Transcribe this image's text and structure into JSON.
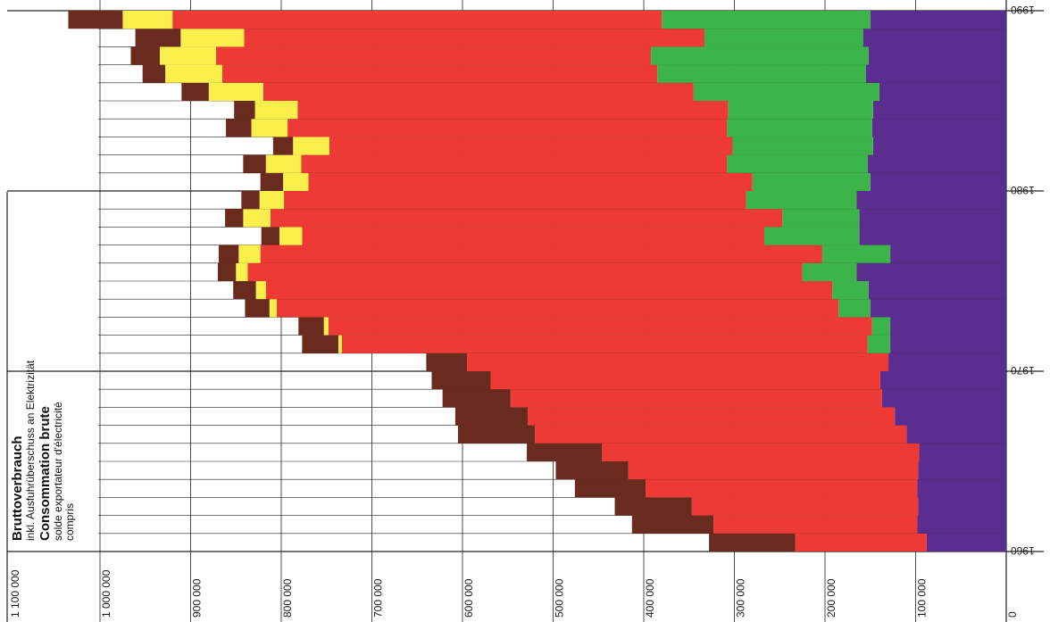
{
  "chart_data": {
    "type": "bar",
    "orientation": "horizontal, stacked, figure rotated 180 degrees (values increase to the left)",
    "titles": [
      {
        "text": "Bruttoverbrauch",
        "style": "bold"
      },
      {
        "text": "inkl. Ausfuhrüberschuss an Elektrizität",
        "style": "normal"
      },
      {
        "text": "Consommation brute",
        "style": "bold"
      },
      {
        "text": "solde exportateur d'électricité",
        "style": "normal"
      },
      {
        "text": "compris",
        "style": "normal"
      }
    ],
    "x_ticks": [
      "0",
      "100 000",
      "200 000",
      "300 000",
      "400 000",
      "500 000",
      "600 000",
      "700 000",
      "800 000",
      "900 000",
      "1 000 000",
      "1 100 000"
    ],
    "xlim": [
      0,
      1100000
    ],
    "year_labels": [
      "1960",
      "1970",
      "1980",
      "1990"
    ],
    "years": [
      1960,
      1961,
      1962,
      1963,
      1964,
      1965,
      1966,
      1967,
      1968,
      1969,
      1970,
      1971,
      1972,
      1973,
      1974,
      1975,
      1976,
      1977,
      1978,
      1979,
      1980,
      1981,
      1982,
      1983,
      1984,
      1985,
      1986,
      1987,
      1988,
      1989,
      1990
    ],
    "colors": {
      "purple": "#5b2d90",
      "green": "#3bb54a",
      "red": "#ee3a35",
      "yellow": "#fbef4b",
      "brown": "#6a2b1f"
    },
    "series": [
      {
        "color": "purple",
        "values": [
          88000,
          98000,
          97000,
          98000,
          97000,
          96000,
          110000,
          123000,
          137000,
          139000,
          130000,
          128000,
          128000,
          150000,
          152000,
          165000,
          128000,
          162000,
          162000,
          165000,
          150000,
          153000,
          147000,
          148000,
          147000,
          140000,
          155000,
          152000,
          158000,
          150000,
          0
        ]
      },
      {
        "color": "green",
        "values": [
          0,
          0,
          0,
          0,
          0,
          0,
          0,
          0,
          0,
          0,
          0,
          25000,
          20000,
          35000,
          40000,
          60000,
          75000,
          105000,
          85000,
          122000,
          130000,
          155000,
          155000,
          160000,
          160000,
          205000,
          230000,
          240000,
          175000,
          230000,
          0
        ]
      },
      {
        "color": "red",
        "values": [
          145000,
          225000,
          250000,
          300000,
          320000,
          350000,
          410000,
          405000,
          410000,
          430000,
          465000,
          580000,
          600000,
          620000,
          625000,
          612000,
          620000,
          510000,
          565000,
          510000,
          490000,
          470000,
          445000,
          485000,
          475000,
          475000,
          480000,
          480000,
          508000,
          540000,
          0
        ]
      },
      {
        "color": "yellow",
        "values": [
          0,
          0,
          0,
          0,
          0,
          0,
          0,
          0,
          0,
          0,
          0,
          4000,
          5000,
          8000,
          11000,
          13000,
          24000,
          25000,
          30000,
          27000,
          28000,
          39000,
          40000,
          40000,
          47000,
          60000,
          63000,
          62000,
          70000,
          55000,
          0
        ]
      },
      {
        "color": "brown",
        "values": [
          95000,
          90000,
          85000,
          78000,
          80000,
          83000,
          85000,
          80000,
          75000,
          65000,
          45000,
          40000,
          28000,
          27000,
          25000,
          20000,
          22000,
          20000,
          20000,
          20000,
          25000,
          25000,
          22000,
          28000,
          23000,
          30000,
          25000,
          32000,
          50000,
          60000,
          0
        ]
      }
    ]
  }
}
